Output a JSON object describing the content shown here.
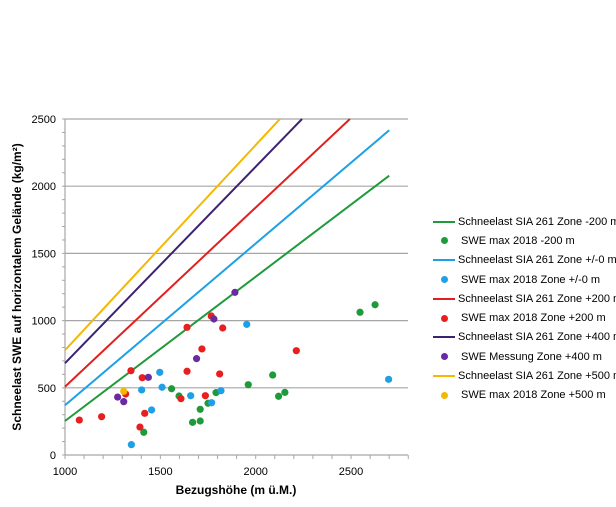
{
  "chart_data": {
    "type": "scatter",
    "title": "",
    "xlabel": "Bezugshöhe (m ü.M.)",
    "ylabel": "Schneelast SWE auf horizontalem Gelände (kg/m²)",
    "xlim": [
      1000,
      2800
    ],
    "ylim": [
      0,
      2500
    ],
    "x_ticks": [
      1000,
      1500,
      2000,
      2500
    ],
    "y_ticks": [
      0,
      500,
      1000,
      1500,
      2000,
      2500
    ],
    "x_tick_labels": [
      "1000",
      "1500",
      "2000",
      "2500"
    ],
    "y_tick_labels": [
      "0",
      "500",
      "1000",
      "1500",
      "2000",
      "2500"
    ],
    "grid": "horizontal",
    "legend_position": "right",
    "series": [
      {
        "name": "Schneelast SIA 261 Zone -200 m",
        "kind": "line",
        "color": "#1f9a3a",
        "points": [
          [
            1000,
            253
          ],
          [
            2700,
            2078
          ]
        ]
      },
      {
        "name": "SWE max 2018 -200 m",
        "kind": "scatter",
        "color": "#1f9a3a",
        "points": [
          [
            1559,
            493
          ],
          [
            1598,
            439
          ],
          [
            1413,
            169
          ],
          [
            1961,
            523
          ],
          [
            1792,
            464
          ],
          [
            1750,
            385
          ],
          [
            1709,
            340
          ],
          [
            1669,
            243
          ],
          [
            1709,
            253
          ],
          [
            2547,
            1062
          ],
          [
            2626,
            1118
          ],
          [
            2089,
            595
          ],
          [
            2120,
            437
          ],
          [
            2153,
            466
          ]
        ]
      },
      {
        "name": "Schneelast SIA 261 Zone +/-0 m",
        "kind": "line",
        "color": "#1ea0e6",
        "points": [
          [
            1000,
            370
          ],
          [
            2700,
            2416
          ]
        ]
      },
      {
        "name": "SWE max 2018 Zone +/-0 m",
        "kind": "scatter",
        "color": "#1ea0e6",
        "points": [
          [
            1497,
            615
          ],
          [
            1402,
            484
          ],
          [
            1509,
            504
          ],
          [
            1454,
            335
          ],
          [
            1348,
            77
          ],
          [
            1953,
            972
          ],
          [
            1818,
            478
          ],
          [
            1659,
            441
          ],
          [
            1769,
            389
          ],
          [
            2697,
            563
          ]
        ]
      },
      {
        "name": "Schneelast SIA 261 Zone +200 m",
        "kind": "line",
        "color": "#e0201e",
        "points": [
          [
            1000,
            508
          ],
          [
            2494,
            2500
          ]
        ]
      },
      {
        "name": "SWE max 2018 Zone +200 m",
        "kind": "scatter",
        "color": "#e81f1f",
        "points": [
          [
            1075,
            260
          ],
          [
            1192,
            285
          ],
          [
            1346,
            627
          ],
          [
            1405,
            575
          ],
          [
            1318,
            454
          ],
          [
            1608,
            419
          ],
          [
            1418,
            310
          ],
          [
            1393,
            208
          ],
          [
            1767,
            1034
          ],
          [
            1640,
            950
          ],
          [
            1827,
            945
          ],
          [
            1718,
            789
          ],
          [
            1640,
            623
          ],
          [
            1811,
            603
          ],
          [
            1736,
            441
          ],
          [
            2213,
            776
          ]
        ]
      },
      {
        "name": "Schneelast SIA 261 Zone +400 m",
        "kind": "line",
        "color": "#3b2272",
        "points": [
          [
            1000,
            683
          ],
          [
            2243,
            2500
          ]
        ]
      },
      {
        "name": "SWE Messung Zone +400 m",
        "kind": "scatter",
        "color": "#6a2aa0",
        "points": [
          [
            1437,
            578
          ],
          [
            1276,
            431
          ],
          [
            1308,
            397
          ],
          [
            1891,
            1210
          ],
          [
            1781,
            1012
          ],
          [
            1690,
            717
          ]
        ]
      },
      {
        "name": "Schneelast SIA 261 Zone +500 m",
        "kind": "line",
        "color": "#f5b800",
        "points": [
          [
            1000,
            780
          ],
          [
            2127,
            2500
          ]
        ]
      },
      {
        "name": "SWE max 2018 Zone +500 m",
        "kind": "scatter",
        "color": "#f5b800",
        "points": [
          [
            1308,
            474
          ]
        ]
      }
    ]
  }
}
